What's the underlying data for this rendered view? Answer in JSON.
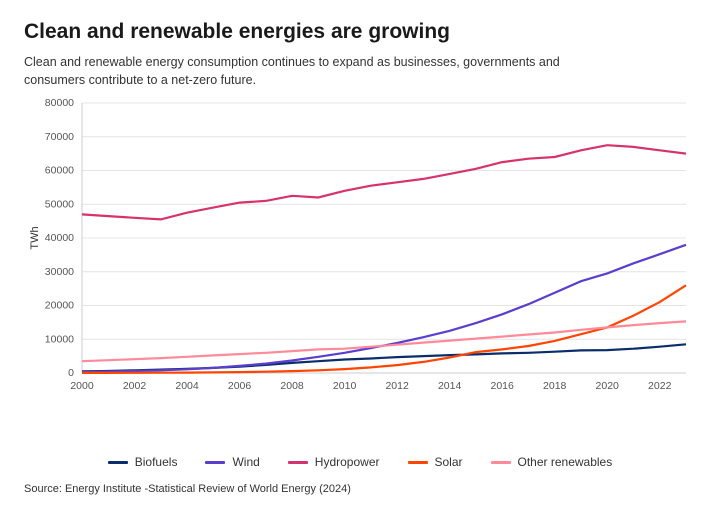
{
  "title": "Clean and renewable energies are growing",
  "subtitle": "Clean and renewable energy consumption continues to expand as businesses, governments and consumers contribute to a net-zero future.",
  "source": "Source: Energy Institute -Statistical Review of World Energy (2024)",
  "chart": {
    "type": "line",
    "background_color": "#ffffff",
    "grid_color": "#e4e4e4",
    "axis_color": "#cccccc",
    "label_color": "#555555",
    "title_fontsize": 21,
    "subtitle_fontsize": 12.5,
    "label_fontsize": 10.5,
    "line_width": 2.2,
    "y_axis": {
      "title": "TWh",
      "min": 0,
      "max": 80000,
      "tick_step": 10000,
      "ticks": [
        0,
        10000,
        20000,
        30000,
        40000,
        50000,
        60000,
        70000,
        80000
      ]
    },
    "x_axis": {
      "min": 2000,
      "max": 2023,
      "tick_step": 2,
      "ticks": [
        2000,
        2002,
        2004,
        2006,
        2008,
        2010,
        2012,
        2014,
        2016,
        2018,
        2020,
        2022
      ]
    },
    "years": [
      2000,
      2001,
      2002,
      2003,
      2004,
      2005,
      2006,
      2007,
      2008,
      2009,
      2010,
      2011,
      2012,
      2013,
      2014,
      2015,
      2016,
      2017,
      2018,
      2019,
      2020,
      2021,
      2022,
      2023
    ],
    "series": [
      {
        "name": "Biofuels",
        "color": "#0a2d6b",
        "values": [
          500,
          600,
          800,
          1000,
          1200,
          1500,
          1900,
          2400,
          3000,
          3500,
          4000,
          4300,
          4700,
          5000,
          5300,
          5500,
          5800,
          6000,
          6300,
          6700,
          6800,
          7200,
          7800,
          8500
        ]
      },
      {
        "name": "Wind",
        "color": "#5a3fcf",
        "values": [
          300,
          400,
          600,
          800,
          1100,
          1500,
          2100,
          2800,
          3700,
          4800,
          6000,
          7400,
          8900,
          10600,
          12500,
          14800,
          17400,
          20400,
          23800,
          27200,
          29500,
          32500,
          35200,
          38000
        ]
      },
      {
        "name": "Hydropower",
        "color": "#d6336c",
        "values": [
          47000,
          46500,
          46000,
          45500,
          47500,
          49000,
          50500,
          51000,
          52500,
          52000,
          54000,
          55500,
          56500,
          57500,
          59000,
          60500,
          62500,
          63500,
          64000,
          66000,
          67500,
          67000,
          66000,
          65000
        ]
      },
      {
        "name": "Solar",
        "color": "#ff4500",
        "values": [
          20,
          30,
          50,
          80,
          120,
          180,
          260,
          380,
          550,
          800,
          1150,
          1650,
          2350,
          3300,
          4600,
          6200,
          7000,
          8000,
          9500,
          11500,
          13500,
          17000,
          21000,
          26000
        ]
      },
      {
        "name": "Other renewables",
        "color": "#ff8a9a",
        "values": [
          3500,
          3800,
          4100,
          4400,
          4800,
          5200,
          5600,
          6000,
          6500,
          7000,
          7200,
          7800,
          8400,
          9000,
          9600,
          10200,
          10800,
          11400,
          12000,
          12800,
          13500,
          14200,
          14800,
          15300
        ]
      }
    ]
  }
}
